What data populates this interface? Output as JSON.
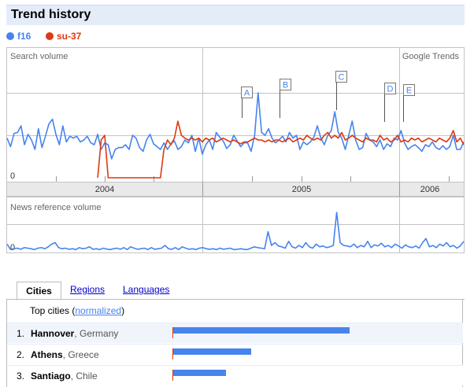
{
  "header": {
    "title": "Trend history"
  },
  "legend": [
    {
      "label": "f16",
      "color": "#4684ee"
    },
    {
      "label": "su-37",
      "color": "#dc3912"
    }
  ],
  "chart": {
    "search_volume_label": "Search volume",
    "brand_label": "Google Trends",
    "zero_label": "0",
    "news_label": "News reference volume",
    "news_zero_label": "0",
    "years": [
      "2004",
      "2005",
      "2006"
    ],
    "annotations": [
      "A",
      "B",
      "C",
      "D",
      "E"
    ]
  },
  "chart_data": [
    {
      "type": "line",
      "title": "Search volume",
      "series": [
        {
          "name": "f16",
          "values": [
            0.42,
            0.33,
            0.47,
            0.48,
            0.55,
            0.35,
            0.46,
            0.4,
            0.3,
            0.52,
            0.32,
            0.44,
            0.57,
            0.62,
            0.46,
            0.35,
            0.55,
            0.38,
            0.44,
            0.42,
            0.44,
            0.38,
            0.4,
            0.44,
            0.37,
            0.35,
            0.46,
            0.3,
            0.37,
            0.35,
            0.2,
            0.3,
            0.32,
            0.32,
            0.35,
            0.3,
            0.45,
            0.42,
            0.32,
            0.28,
            0.4,
            0.46,
            0.36,
            0.33,
            0.3,
            0.37,
            0.3,
            0.36,
            0.39,
            0.3,
            0.33,
            0.4,
            0.37,
            0.45,
            0.28,
            0.42,
            0.25,
            0.35,
            0.4,
            0.3,
            0.48,
            0.43,
            0.39,
            0.31,
            0.35,
            0.45,
            0.39,
            0.33,
            0.37,
            0.37,
            0.28,
            0.45,
            0.9,
            0.48,
            0.45,
            0.52,
            0.42,
            0.37,
            0.4,
            0.44,
            0.38,
            0.48,
            0.42,
            0.45,
            0.3,
            0.38,
            0.35,
            0.38,
            0.43,
            0.55,
            0.42,
            0.35,
            0.45,
            0.5,
            0.7,
            0.48,
            0.42,
            0.3,
            0.45,
            0.6,
            0.4,
            0.3,
            0.32,
            0.47,
            0.4,
            0.38,
            0.33,
            0.4,
            0.3,
            0.36,
            0.33,
            0.42,
            0.4,
            0.5,
            0.37,
            0.3,
            0.33,
            0.35,
            0.32,
            0.28,
            0.35,
            0.33,
            0.38,
            0.32,
            0.3,
            0.34,
            0.3,
            0.33,
            0.45,
            0.3,
            0.3,
            0.38
          ]
        },
        {
          "name": "su-37",
          "values": [
            null,
            null,
            null,
            null,
            null,
            null,
            null,
            null,
            null,
            null,
            null,
            null,
            null,
            null,
            null,
            null,
            null,
            null,
            null,
            null,
            null,
            null,
            null,
            null,
            null,
            null,
            0.0,
            0.4,
            0.45,
            0.0,
            0.0,
            0.0,
            0.0,
            0.0,
            0.0,
            0.0,
            0.0,
            0.0,
            0.0,
            0.0,
            0.0,
            0.0,
            0.0,
            0.0,
            0.0,
            0.3,
            0.4,
            0.35,
            0.42,
            0.6,
            0.45,
            0.42,
            0.4,
            0.42,
            0.4,
            0.42,
            0.38,
            0.42,
            0.4,
            0.42,
            0.38,
            0.4,
            0.42,
            0.4,
            0.38,
            0.4,
            0.38,
            0.36,
            0.38,
            0.38,
            0.4,
            0.42,
            0.4,
            0.4,
            0.38,
            0.4,
            0.38,
            0.4,
            0.4,
            0.38,
            0.4,
            0.42,
            0.38,
            0.4,
            0.42,
            0.4,
            0.45,
            0.42,
            0.4,
            0.42,
            0.4,
            0.45,
            0.48,
            0.42,
            0.45,
            0.42,
            0.48,
            0.4,
            0.42,
            0.45,
            0.42,
            0.4,
            0.38,
            0.42,
            0.4,
            0.4,
            0.38,
            0.45,
            0.4,
            0.42,
            0.38,
            0.4,
            0.45,
            0.38,
            0.4,
            0.38,
            0.42,
            0.4,
            0.42,
            0.38,
            0.4,
            0.42,
            0.4,
            0.38,
            0.42,
            0.4,
            0.38,
            0.42,
            0.5,
            0.38,
            0.42,
            0.35
          ]
        }
      ]
    },
    {
      "type": "line",
      "title": "News reference volume",
      "series": [
        {
          "name": "f16",
          "values": [
            0.25,
            0.05,
            0.08,
            0.1,
            0.06,
            0.12,
            0.1,
            0.08,
            0.05,
            0.1,
            0.12,
            0.08,
            0.15,
            0.25,
            0.3,
            0.12,
            0.08,
            0.1,
            0.06,
            0.08,
            0.05,
            0.12,
            0.08,
            0.1,
            0.15,
            0.06,
            0.08,
            0.05,
            0.1,
            0.07,
            0.05,
            0.08,
            0.1,
            0.06,
            0.12,
            0.05,
            0.15,
            0.1,
            0.06,
            0.08,
            0.1,
            0.05,
            0.12,
            0.06,
            0.08,
            0.1,
            0.2,
            0.08,
            0.06,
            0.12,
            0.05,
            0.15,
            0.1,
            0.06,
            0.08,
            0.05,
            0.1,
            0.12,
            0.08,
            0.06,
            0.08,
            0.05,
            0.1,
            0.06,
            0.08,
            0.1,
            0.05,
            0.06,
            0.08,
            0.06,
            0.05,
            0.1,
            0.15,
            0.12,
            0.1,
            0.08,
            0.7,
            0.2,
            0.3,
            0.18,
            0.15,
            0.1,
            0.35,
            0.15,
            0.1,
            0.2,
            0.12,
            0.3,
            0.15,
            0.1,
            0.25,
            0.15,
            0.18,
            0.12,
            0.15,
            0.2,
            1.4,
            0.3,
            0.2,
            0.18,
            0.15,
            0.25,
            0.12,
            0.2,
            0.15,
            0.35,
            0.12,
            0.22,
            0.18,
            0.28,
            0.15,
            0.2,
            0.12,
            0.25,
            0.18,
            0.1,
            0.22,
            0.15,
            0.12,
            0.18,
            0.1,
            0.3,
            0.45,
            0.15,
            0.2,
            0.12,
            0.25,
            0.18,
            0.3,
            0.15,
            0.2,
            0.1,
            0.18,
            0.35
          ]
        }
      ]
    }
  ],
  "tabs": [
    {
      "label": "Cities",
      "active": true
    },
    {
      "label": "Regions",
      "active": false
    },
    {
      "label": "Languages",
      "active": false
    }
  ],
  "cities": {
    "heading": "Top cities",
    "normalized_link": "normalized",
    "rows": [
      {
        "rank": "1.",
        "city": "Hannover",
        "country": ", Germany",
        "value": 1.0
      },
      {
        "rank": "2.",
        "city": "Athens",
        "country": ", Greece",
        "value": 0.44
      },
      {
        "rank": "3.",
        "city": "Santiago",
        "country": ", Chile",
        "value": 0.3
      }
    ]
  }
}
